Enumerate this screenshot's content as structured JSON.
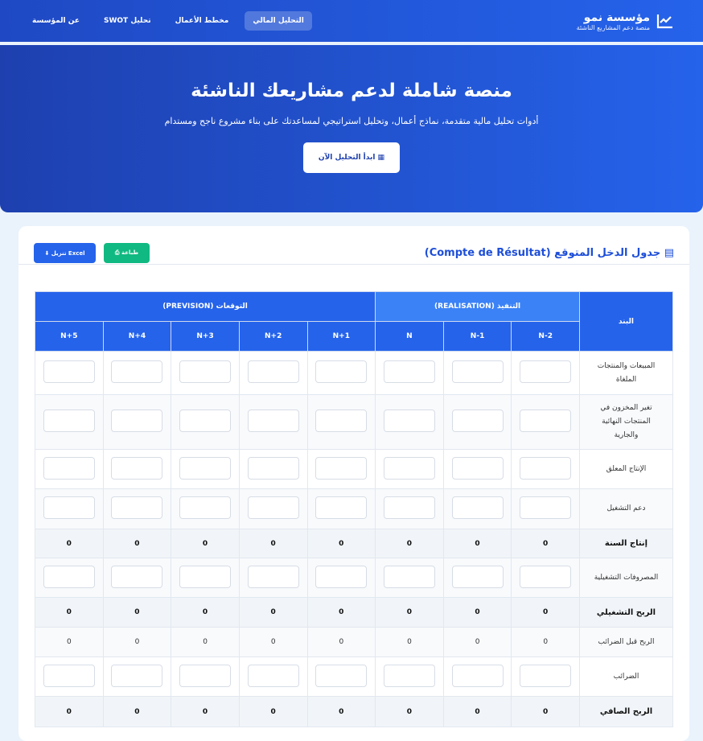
{
  "nav": {
    "brand_title": "مؤسسة نمو",
    "brand_subtitle": "منصة دعم المشاريع الناشئة",
    "items": [
      "التحليل المالي",
      "مخطط الأعمال",
      "تحليل SWOT",
      "عن المؤسسة"
    ],
    "active": 0
  },
  "hero": {
    "title": "منصة شاملة لدعم مشاريعك الناشئة",
    "subtitle": "أدوات تحليل مالية متقدمة، نماذج أعمال، وتحليل استراتيجي لمساعدتك على بناء مشروع ناجح ومستدام",
    "cta": "ابدأ التحليل الآن"
  },
  "card": {
    "title": "جدول الدخل المتوقع (Compte de Résultat)",
    "print_label": "طباعة",
    "excel_label": "تنزيل Excel"
  },
  "table": {
    "item_header": "البند",
    "realisation_header": "التنفيذ (REALISATION)",
    "prevision_header": "التوقعات (PREVISION)",
    "years": [
      "N-2",
      "N-1",
      "N",
      "N+1",
      "N+2",
      "N+3",
      "N+4",
      "N+5"
    ],
    "rows": [
      {
        "label": "المبيعات والمنتجات الملغاة",
        "type": "input"
      },
      {
        "label": "تغير المخزون في المنتجات النهائية والجارية",
        "type": "input"
      },
      {
        "label": "الإنتاج المعلق",
        "type": "input"
      },
      {
        "label": "دعم التشغيل",
        "type": "input"
      },
      {
        "label": "إنتاج السنة",
        "type": "total",
        "values": [
          "0",
          "0",
          "0",
          "0",
          "0",
          "0",
          "0",
          "0"
        ]
      },
      {
        "label": "المصروفات التشغيلية",
        "type": "input"
      },
      {
        "label": "الربح التشغيلي",
        "type": "total",
        "values": [
          "0",
          "0",
          "0",
          "0",
          "0",
          "0",
          "0",
          "0"
        ]
      },
      {
        "label": "الربح قبل الضرائب",
        "type": "value",
        "values": [
          "0",
          "0",
          "0",
          "0",
          "0",
          "0",
          "0",
          "0"
        ]
      },
      {
        "label": "الضرائب",
        "type": "input"
      },
      {
        "label": "الربح الصافي",
        "type": "total",
        "values": [
          "0",
          "0",
          "0",
          "0",
          "0",
          "0",
          "0",
          "0"
        ]
      }
    ]
  },
  "colors": {
    "primary": "#2563eb",
    "success": "#10b981",
    "realisation": "#3b82f6"
  }
}
